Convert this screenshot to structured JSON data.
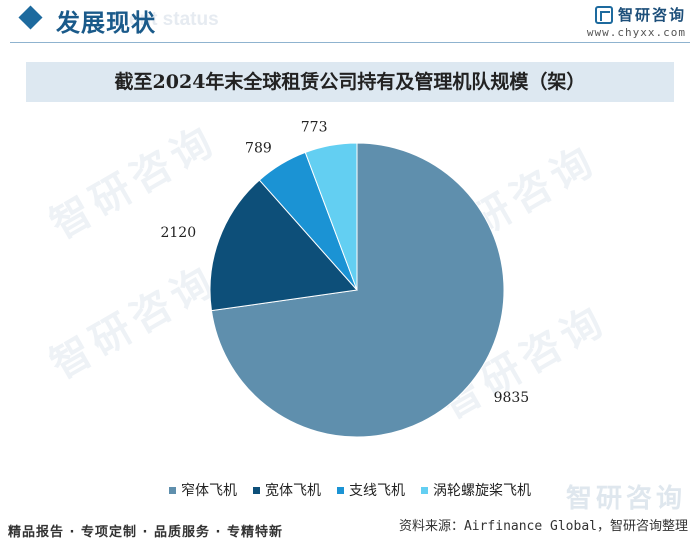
{
  "header": {
    "section_title": "发展现状",
    "section_subtitle": "ment status",
    "brand_name": "智研咨询",
    "brand_url": "www.chyxx.com"
  },
  "chart_title": "截至2024年末全球租赁公司持有及管理机队规模（架）",
  "chart_data": {
    "type": "pie",
    "title": "截至2024年末全球租赁公司持有及管理机队规模（架）",
    "categories": [
      "窄体飞机",
      "宽体飞机",
      "支线飞机",
      "涡轮螺旋桨飞机"
    ],
    "values": [
      9835,
      2120,
      789,
      773
    ],
    "colors": [
      "#5f8fad",
      "#0d4f79",
      "#1b93d4",
      "#63cff2"
    ],
    "legend": "bottom",
    "data_labels": [
      "9835",
      "2120",
      "789",
      "773"
    ]
  },
  "watermark": "智研咨询",
  "footer": {
    "left": "精品报告 · 专项定制 · 品质服务 · 专精特新",
    "right": "资料来源：Airfinance Global，智研咨询整理"
  }
}
